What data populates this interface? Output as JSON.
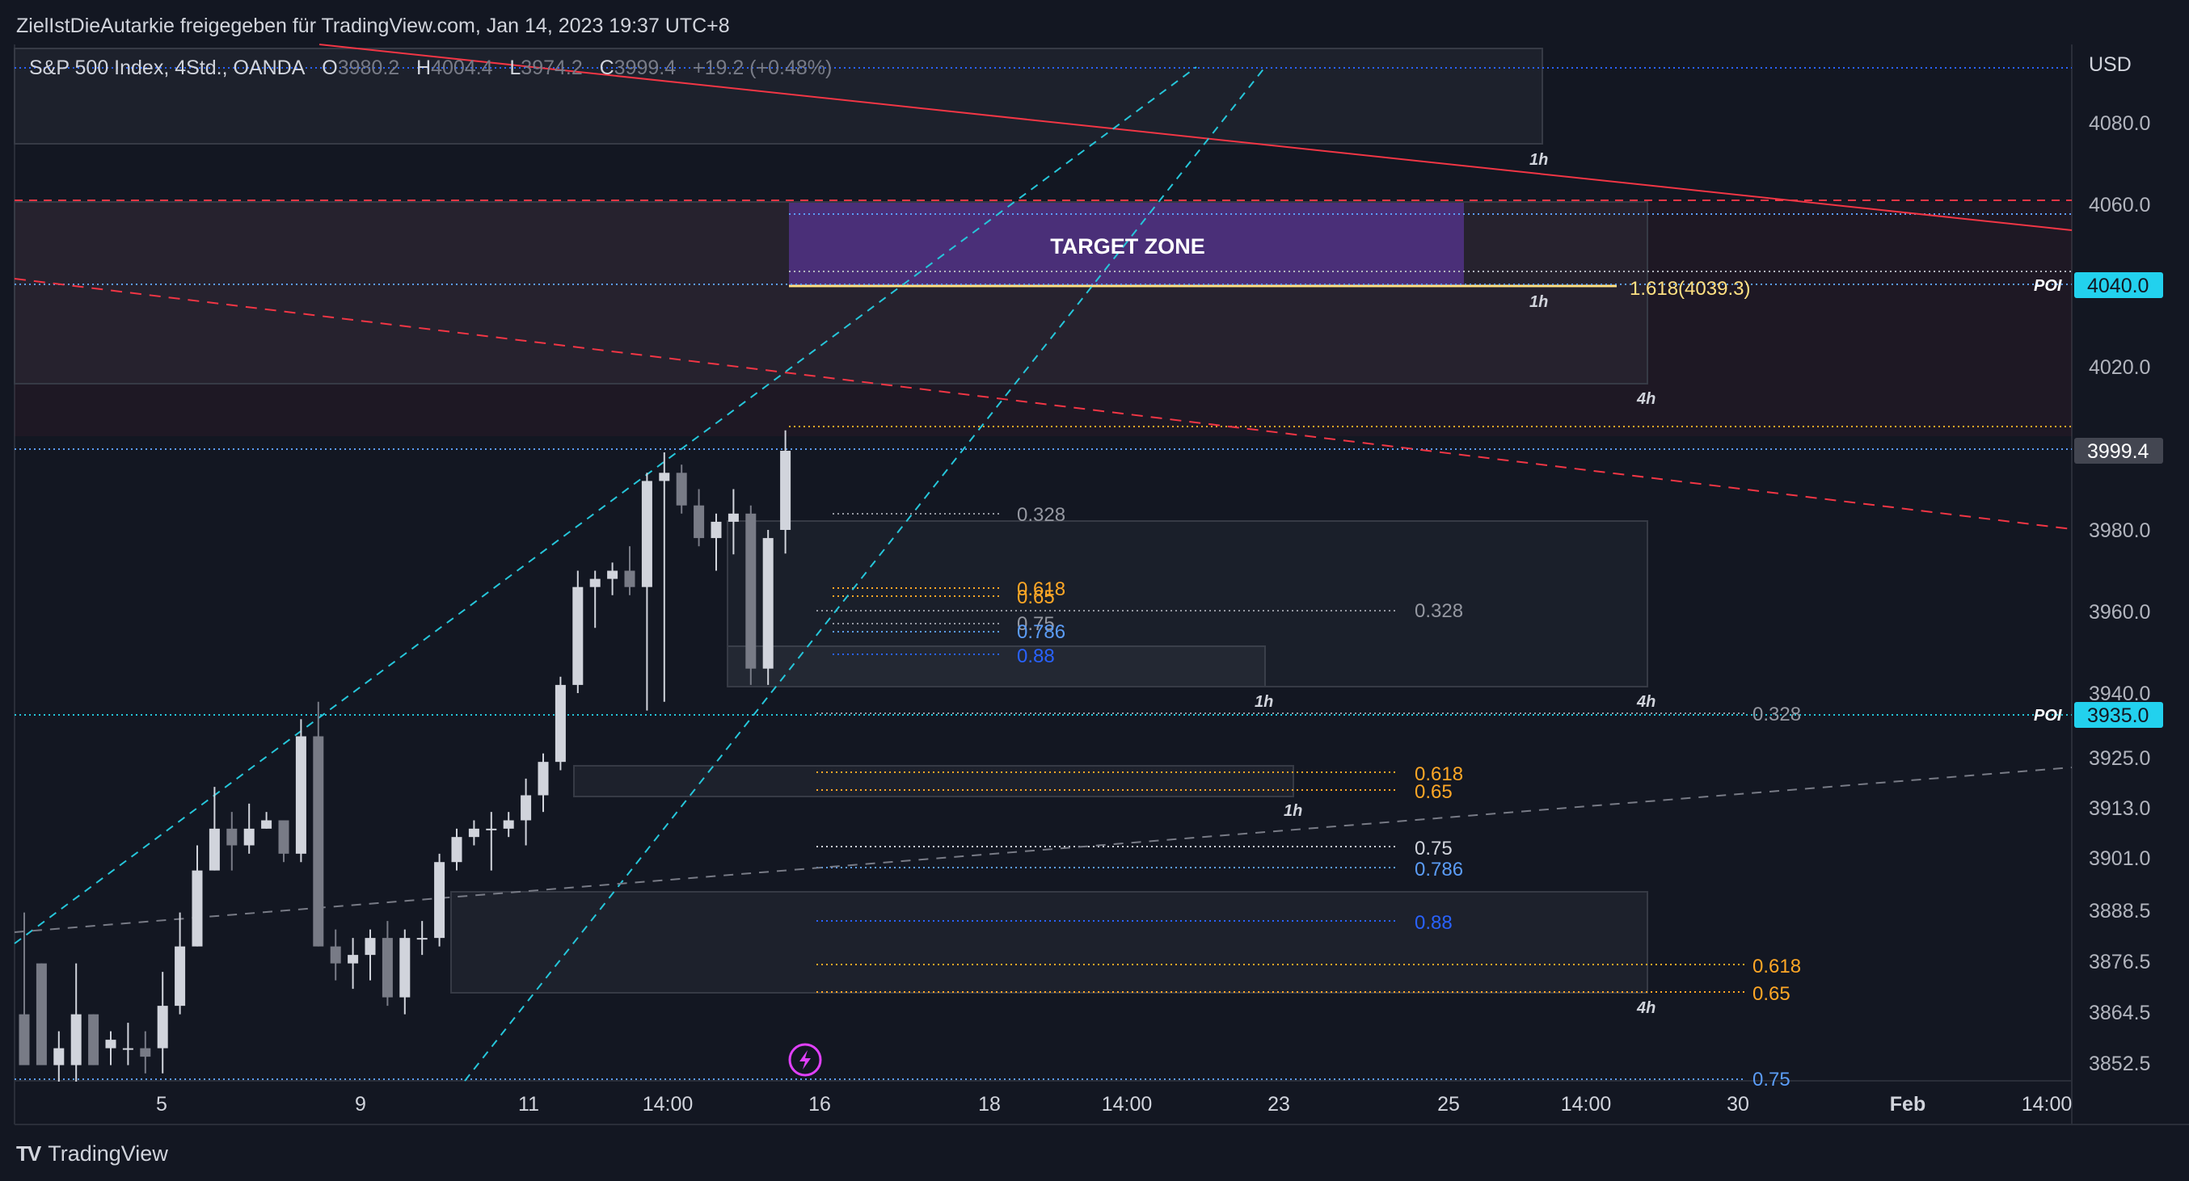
{
  "header": {
    "text": "ZielIstDieAutarkie freigegeben für TradingView.com, Jan 14, 2023 19:37 UTC+8"
  },
  "legend": {
    "symbol": "S&P 500 Index, 4Std., OANDA",
    "open_label": "O",
    "open": "3980.2",
    "high_label": "H",
    "high": "4004.4",
    "low_label": "L",
    "low": "3974.2",
    "close_label": "C",
    "close": "3999.4",
    "change": "+19.2 (+0.48%)"
  },
  "footer": {
    "logo": "TV",
    "brand": "TradingView"
  },
  "colors": {
    "background": "#131722",
    "bull": "#d1d4dc",
    "bear": "#787b86",
    "red_line": "#f23645",
    "cyan": "#26c6da",
    "target": "#673ab7",
    "orange": "#ffa726",
    "blue": "#5b9cf6",
    "poi_badge": "#22d1ee"
  },
  "chart_data": {
    "type": "candlestick",
    "currency": "USD",
    "y_ticks": [
      "4080.0",
      "4060.0",
      "4040.0",
      "4020.0",
      "3999.4",
      "3980.0",
      "3960.0",
      "3940.0",
      "3935.0",
      "3925.0",
      "3913.0",
      "3901.0",
      "3888.5",
      "3876.5",
      "3864.5",
      "3852.5"
    ],
    "x_ticks": [
      "5",
      "9",
      "11",
      "14:00",
      "16",
      "18",
      "14:00",
      "23",
      "25",
      "14:00",
      "30",
      "Feb",
      "14:00"
    ],
    "x_ticks_bold": [
      "Feb"
    ],
    "candles": [
      [
        3864,
        3888,
        3852,
        3852
      ],
      [
        3876,
        3876,
        3852,
        3852
      ],
      [
        3852,
        3860,
        3848,
        3856
      ],
      [
        3852,
        3876,
        3848,
        3864
      ],
      [
        3864,
        3864,
        3852,
        3852
      ],
      [
        3856,
        3860,
        3852,
        3858
      ],
      [
        3856,
        3862,
        3852,
        3856
      ],
      [
        3856,
        3860,
        3850,
        3854
      ],
      [
        3856,
        3874,
        3850,
        3866
      ],
      [
        3866,
        3888,
        3864,
        3880
      ],
      [
        3880,
        3904,
        3880,
        3898
      ],
      [
        3898,
        3918,
        3898,
        3908
      ],
      [
        3908,
        3912,
        3898,
        3904
      ],
      [
        3904,
        3914,
        3902,
        3908
      ],
      [
        3908,
        3912,
        3908,
        3910
      ],
      [
        3910,
        3910,
        3900,
        3902
      ],
      [
        3902,
        3934,
        3900,
        3930
      ],
      [
        3930,
        3938,
        3880,
        3880
      ],
      [
        3880,
        3884,
        3872,
        3876
      ],
      [
        3876,
        3882,
        3870,
        3878
      ],
      [
        3878,
        3884,
        3872,
        3882
      ],
      [
        3882,
        3886,
        3866,
        3868
      ],
      [
        3868,
        3884,
        3864,
        3882
      ],
      [
        3882,
        3886,
        3878,
        3882
      ],
      [
        3882,
        3902,
        3880,
        3900
      ],
      [
        3900,
        3908,
        3898,
        3906
      ],
      [
        3906,
        3910,
        3904,
        3908
      ],
      [
        3908,
        3912,
        3898,
        3908
      ],
      [
        3908,
        3912,
        3906,
        3910
      ],
      [
        3910,
        3920,
        3904,
        3916
      ],
      [
        3916,
        3926,
        3912,
        3924
      ],
      [
        3924,
        3944,
        3922,
        3942
      ],
      [
        3942,
        3970,
        3940,
        3966
      ],
      [
        3966,
        3970,
        3956,
        3968
      ],
      [
        3968,
        3972,
        3964,
        3970
      ],
      [
        3970,
        3976,
        3964,
        3966
      ],
      [
        3966,
        3994,
        3936,
        3992
      ],
      [
        3992,
        3999,
        3938,
        3994
      ],
      [
        3994,
        3996,
        3984,
        3986
      ],
      [
        3986,
        3990,
        3976,
        3978
      ],
      [
        3978,
        3984,
        3970,
        3982
      ],
      [
        3982,
        3990,
        3974,
        3984
      ],
      [
        3984,
        3986,
        3942,
        3946
      ],
      [
        3946,
        3980,
        3942,
        3978
      ],
      [
        3980,
        4004.4,
        3974.2,
        3999.4
      ]
    ],
    "annotations": {
      "target_zone": "TARGET ZONE",
      "fib_target": "1.618(4039.3)",
      "poi_labels": [
        "POI",
        "POI"
      ],
      "timeframe_labels": [
        "1h",
        "1h",
        "4h",
        "1h",
        "4h",
        "1h",
        "4h"
      ],
      "fib_labels": [
        {
          "text": "0.328",
          "level": "0.328",
          "color": "#9598a1"
        },
        {
          "text": "0.618",
          "level": "0.618",
          "color": "#ffa726"
        },
        {
          "text": "0.65",
          "level": "0.65",
          "color": "#ffa726"
        },
        {
          "text": "0.75",
          "level": "0.75",
          "color": "#9598a1"
        },
        {
          "text": "0.786",
          "level": "0.786",
          "color": "#5b9cf6"
        },
        {
          "text": "0.88",
          "level": "0.88",
          "color": "#2962ff"
        },
        {
          "text": "0.328",
          "level": "0.328",
          "color": "#9598a1"
        },
        {
          "text": "0.328",
          "level": "0.328",
          "color": "#9598a1"
        },
        {
          "text": "0.618",
          "level": "0.618",
          "color": "#ffa726"
        },
        {
          "text": "0.65",
          "level": "0.65",
          "color": "#ffa726"
        },
        {
          "text": "0.75",
          "level": "0.75",
          "color": "#d1d4dc"
        },
        {
          "text": "0.786",
          "level": "0.786",
          "color": "#5b9cf6"
        },
        {
          "text": "0.88",
          "level": "0.88",
          "color": "#2962ff"
        },
        {
          "text": "0.618",
          "level": "0.618",
          "color": "#ffa726"
        },
        {
          "text": "0.65",
          "level": "0.65",
          "color": "#ffa726"
        },
        {
          "text": "0.75",
          "level": "0.75",
          "color": "#5b9cf6"
        }
      ]
    }
  }
}
